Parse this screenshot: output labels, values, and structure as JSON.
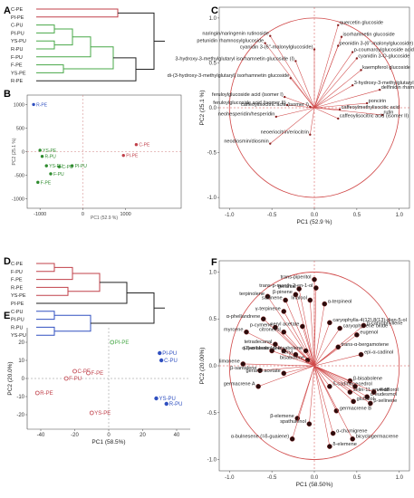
{
  "panel_labels": [
    "A",
    "B",
    "C",
    "D",
    "E",
    "F"
  ],
  "colors": {
    "pe": "#c0404a",
    "pu_green": "#48a848",
    "pu_blue": "#3050c0",
    "scatter_green": "#2e8b2e",
    "vector": "#d04848",
    "frame": "#555555"
  },
  "chart_data": [
    {
      "panel": "A",
      "type": "dendrogram",
      "leaves": [
        {
          "name": "C-PE",
          "group": "red"
        },
        {
          "name": "PI-PE",
          "group": "red"
        },
        {
          "name": "C-PU",
          "group": "green"
        },
        {
          "name": "PI-PU",
          "group": "green"
        },
        {
          "name": "YS-PU",
          "group": "green"
        },
        {
          "name": "R-PU",
          "group": "green"
        },
        {
          "name": "F-PU",
          "group": "green"
        },
        {
          "name": "F-PE",
          "group": "green"
        },
        {
          "name": "YS-PE",
          "group": "green"
        },
        {
          "name": "R-PE",
          "group": "blue"
        }
      ]
    },
    {
      "panel": "B",
      "type": "scatter",
      "xlabel": "PC1 (52.9 %)",
      "ylabel": "PC2 (25.1 %)",
      "xticks": [
        "-1000",
        "0",
        "1000"
      ],
      "yticks": [
        "1000",
        "500",
        "0",
        "-500",
        "-1000"
      ],
      "xlim": [
        -1300,
        2300
      ],
      "ylim": [
        -1200,
        1200
      ],
      "points": [
        {
          "name": "R-PE",
          "x": -1150,
          "y": 1000,
          "color": "blue"
        },
        {
          "name": "C-PE",
          "x": 1250,
          "y": 150,
          "color": "red"
        },
        {
          "name": "PI-PE",
          "x": 950,
          "y": -80,
          "color": "red"
        },
        {
          "name": "YS-PE",
          "x": -1000,
          "y": 30,
          "color": "green"
        },
        {
          "name": "R-PU",
          "x": -950,
          "y": -100,
          "color": "green"
        },
        {
          "name": "PI-PU",
          "x": -250,
          "y": -300,
          "color": "green"
        },
        {
          "name": "YS-PU",
          "x": -850,
          "y": -300,
          "color": "green"
        },
        {
          "name": "C-PU",
          "x": -550,
          "y": -320,
          "color": "green"
        },
        {
          "name": "F-PU",
          "x": -750,
          "y": -470,
          "color": "green"
        },
        {
          "name": "F-PE",
          "x": -1050,
          "y": -650,
          "color": "green"
        }
      ]
    },
    {
      "panel": "C",
      "type": "loading_plot",
      "xlabel": "PC1 (52.9 %)",
      "ylabel": "PC2 (25.1 %)",
      "xticks": [
        "-1.0",
        "-0.5",
        "0.0",
        "0.5",
        "1.0"
      ],
      "yticks": [
        "1.0",
        "0.5",
        "0.0",
        "-0.5",
        "-1.0"
      ],
      "xlim": [
        -1.12,
        1.12
      ],
      "ylim": [
        -1.12,
        1.12
      ],
      "vectors": [
        {
          "name": "quercetin glucoside",
          "x": 0.28,
          "y": 0.92
        },
        {
          "name": "isorhamnetin glucoside",
          "x": 0.32,
          "y": 0.79
        },
        {
          "name": "peonidin 3-(6''-malonylglucoside)",
          "x": 0.28,
          "y": 0.69
        },
        {
          "name": "p-coumaroylglucoside acid (isomer I)",
          "x": 0.45,
          "y": 0.62
        },
        {
          "name": "naringin/naringenin rutinoside",
          "x": -0.52,
          "y": 0.8
        },
        {
          "name": "petunidin rhamnosylglucoside",
          "x": -0.58,
          "y": 0.72
        },
        {
          "name": "cyanidin 3-(6''-malonylglucoside)",
          "x": 0.0,
          "y": 0.65
        },
        {
          "name": "cyanidin 3-O-glucoside",
          "x": 0.5,
          "y": 0.55
        },
        {
          "name": "3-hydroxy-3-methylglutaryl isorhamnetin glucoside (I)",
          "x": -0.22,
          "y": 0.52
        },
        {
          "name": "kaempferol glucoside",
          "x": 0.55,
          "y": 0.42
        },
        {
          "name": "di-(3-hydroxy-3-methylglutaryl) isorhamnetin glucoside",
          "x": -0.28,
          "y": 0.33
        },
        {
          "name": "3-hydroxy-3-methylglutaryl isorhamnetin glucoside (II)",
          "x": 0.45,
          "y": 0.25
        },
        {
          "name": "delfinidin rhamno",
          "x": 0.77,
          "y": 0.2
        },
        {
          "name": "feruloylglucoside acid (isomer I)",
          "x": -0.35,
          "y": 0.12
        },
        {
          "name": "feruloylglucoside acid (isomer II)",
          "x": -0.32,
          "y": 0.03
        },
        {
          "name": "poncirin",
          "x": 0.62,
          "y": 0.05
        },
        {
          "name": "caffeoylisocitric acid (isomer I)",
          "x": -0.05,
          "y": 0.01
        },
        {
          "name": "rutin",
          "x": 0.8,
          "y": -0.08
        },
        {
          "name": "caffeoylmethylisocitic acid",
          "x": 0.3,
          "y": -0.02
        },
        {
          "name": "neohesperidin/hesperidin",
          "x": -0.45,
          "y": -0.1
        },
        {
          "name": "caffeoylisocitric acid (isomer II)",
          "x": 0.28,
          "y": -0.12
        },
        {
          "name": "neoeriocitrin/eriocitrin",
          "x": -0.05,
          "y": -0.3
        },
        {
          "name": "neodiosmin/diosmin",
          "x": -0.52,
          "y": -0.4
        }
      ]
    },
    {
      "panel": "D",
      "type": "dendrogram",
      "leaves": [
        {
          "name": "C-PE",
          "group": "red"
        },
        {
          "name": "F-PU",
          "group": "red"
        },
        {
          "name": "F-PE",
          "group": "red"
        },
        {
          "name": "R-PE",
          "group": "red"
        },
        {
          "name": "YS-PE",
          "group": "red"
        },
        {
          "name": "PI-PE",
          "group": "green"
        },
        {
          "name": "C-PU",
          "group": "blue"
        },
        {
          "name": "PI-PU",
          "group": "blue"
        },
        {
          "name": "R-PU",
          "group": "blue"
        },
        {
          "name": "YS-PU",
          "group": "blue"
        }
      ]
    },
    {
      "panel": "E",
      "type": "scatter",
      "xlabel": "PC1 (58.5%)",
      "ylabel": "PC2 (20.0%)",
      "xticks": [
        "-40",
        "-20",
        "0",
        "20",
        "40"
      ],
      "yticks": [
        "20",
        "10",
        "0",
        "-10",
        "-20"
      ],
      "xlim": [
        -48,
        48
      ],
      "ylim": [
        -28,
        28
      ],
      "points": [
        {
          "name": "PI-PE",
          "x": 2,
          "y": 20,
          "color": "green"
        },
        {
          "name": "PI-PU",
          "x": 30,
          "y": 14,
          "color": "blue"
        },
        {
          "name": "C-PU",
          "x": 31,
          "y": 10,
          "color": "blue"
        },
        {
          "name": "C-PE",
          "x": -20,
          "y": 4,
          "color": "red"
        },
        {
          "name": "F-PE",
          "x": -12,
          "y": 3,
          "color": "red"
        },
        {
          "name": "F-PU",
          "x": -25,
          "y": 0,
          "color": "red"
        },
        {
          "name": "R-PE",
          "x": -42,
          "y": -8,
          "color": "red"
        },
        {
          "name": "YS-PU",
          "x": 28,
          "y": -11,
          "color": "blue"
        },
        {
          "name": "R-PU",
          "x": 34,
          "y": -14,
          "color": "blue"
        },
        {
          "name": "YS-PE",
          "x": -10,
          "y": -19,
          "color": "red"
        }
      ]
    },
    {
      "panel": "F",
      "type": "loading_plot",
      "xlabel": "PC1 (58.50%)",
      "ylabel": "PC2 (20.00%)",
      "xticks": [
        "-1.0",
        "-0.5",
        "0.0",
        "0.5",
        "1.0"
      ],
      "yticks": [
        "1.0",
        "0.5",
        "0.0",
        "-0.5",
        "-1.0"
      ],
      "xlim": [
        -1.12,
        1.12
      ],
      "ylim": [
        -1.12,
        1.12
      ],
      "vectors": [
        {
          "name": "trans-piperitol",
          "x": 0.0,
          "y": 0.92
        },
        {
          "name": "trans-p-menth-2-en-1-ol",
          "x": 0.02,
          "y": 0.83
        },
        {
          "name": "terpinolene",
          "x": -0.55,
          "y": 0.74
        },
        {
          "name": "geranial",
          "x": -0.18,
          "y": 0.82
        },
        {
          "name": "β-pinene",
          "x": -0.22,
          "y": 0.76
        },
        {
          "name": "sabinene",
          "x": -0.34,
          "y": 0.7
        },
        {
          "name": "linalool",
          "x": -0.05,
          "y": 0.7
        },
        {
          "name": "α-terpineol",
          "x": 0.12,
          "y": 0.66
        },
        {
          "name": "γ-terpinene",
          "x": -0.36,
          "y": 0.58
        },
        {
          "name": "α-phellandrene",
          "x": -0.6,
          "y": 0.5
        },
        {
          "name": "p-cymene",
          "x": -0.46,
          "y": 0.41
        },
        {
          "name": "myrcene",
          "x": -0.8,
          "y": 0.36
        },
        {
          "name": "citronellol",
          "x": -0.36,
          "y": 0.36
        },
        {
          "name": "neryl acetate",
          "x": -0.14,
          "y": 0.42
        },
        {
          "name": "caryophylla-4(12),8(13)-dien-5-ol",
          "x": 0.18,
          "y": 0.46
        },
        {
          "name": "caryophyllene oxide",
          "x": 0.3,
          "y": 0.4
        },
        {
          "name": "β-caryophyllene",
          "x": 0.58,
          "y": 0.43
        },
        {
          "name": "eugenol",
          "x": 0.5,
          "y": 0.33
        },
        {
          "name": "tetradecanal",
          "x": -0.46,
          "y": 0.23
        },
        {
          "name": "α-santalene",
          "x": -0.5,
          "y": 0.16
        },
        {
          "name": "(Z)-α-bisabolene",
          "x": -0.36,
          "y": 0.16
        },
        {
          "name": "β-bisabolene",
          "x": -0.1,
          "y": 0.16
        },
        {
          "name": "trans-α-bergamotene",
          "x": 0.28,
          "y": 0.2
        },
        {
          "name": "epi-α-cadinol",
          "x": 0.55,
          "y": 0.12
        },
        {
          "name": "limonene",
          "x": -0.84,
          "y": 0.02
        },
        {
          "name": "bisabolene",
          "x": -0.08,
          "y": 0.06
        },
        {
          "name": "neryl",
          "x": -0.22,
          "y": 0.12
        },
        {
          "name": "β-santalene",
          "x": -0.64,
          "y": -0.05
        },
        {
          "name": "geranyl acetate",
          "x": -0.36,
          "y": -0.08
        },
        {
          "name": "germacrene A",
          "x": -0.66,
          "y": -0.22
        },
        {
          "name": "β-bisabolene",
          "x": 0.42,
          "y": -0.16
        },
        {
          "name": "cedrol",
          "x": 0.48,
          "y": -0.22
        },
        {
          "name": "δ-cadinene",
          "x": 0.18,
          "y": -0.22
        },
        {
          "name": "selin-11-en-4-ol",
          "x": 0.42,
          "y": -0.28
        },
        {
          "name": "α-eudesmol",
          "x": 0.62,
          "y": -0.33
        },
        {
          "name": "viridiflorol",
          "x": 0.7,
          "y": -0.28
        },
        {
          "name": "globulol",
          "x": 0.46,
          "y": -0.38
        },
        {
          "name": "germacrene B",
          "x": 0.26,
          "y": -0.48
        },
        {
          "name": "β-selinene",
          "x": 0.66,
          "y": -0.4
        },
        {
          "name": "β-elemene",
          "x": -0.2,
          "y": -0.56
        },
        {
          "name": "spathulenol",
          "x": -0.06,
          "y": -0.62
        },
        {
          "name": "α-bulnesene (=δ-guaiene)",
          "x": -0.26,
          "y": -0.78
        },
        {
          "name": "α-chamigrene",
          "x": 0.22,
          "y": -0.72
        },
        {
          "name": "bicyclogermacrene",
          "x": 0.45,
          "y": -0.78
        },
        {
          "name": "δ-elemene",
          "x": 0.18,
          "y": -0.86
        }
      ]
    }
  ]
}
